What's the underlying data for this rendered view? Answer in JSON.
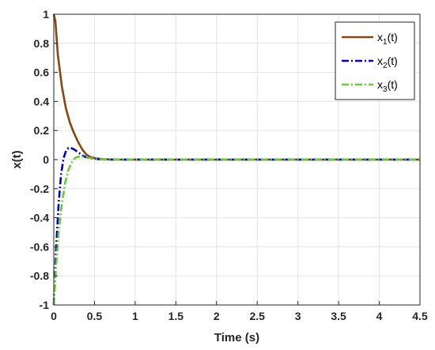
{
  "chart_data": {
    "type": "line",
    "title": "",
    "xlabel": "Time (s)",
    "ylabel": "x(t)",
    "xlim": [
      0,
      4.5
    ],
    "ylim": [
      -1,
      1
    ],
    "xticks": [
      0,
      0.5,
      1,
      1.5,
      2,
      2.5,
      3,
      3.5,
      4,
      4.5
    ],
    "xtick_labels": [
      "0",
      "0.5",
      "1",
      "1.5",
      "2",
      "2.5",
      "3",
      "3.5",
      "4",
      "4.5"
    ],
    "yticks": [
      -1,
      -0.8,
      -0.6,
      -0.4,
      -0.2,
      0,
      0.2,
      0.4,
      0.6,
      0.8,
      1
    ],
    "ytick_labels": [
      "-1",
      "-0.8",
      "-0.6",
      "-0.4",
      "-0.2",
      "0",
      "0.2",
      "0.4",
      "0.6",
      "0.8",
      "1"
    ],
    "grid": true,
    "legend_position": "top-right",
    "series": [
      {
        "name": "x1(t)",
        "legend_main": "x",
        "legend_sub": "1",
        "legend_suffix": "(t)",
        "color": "#8B4513",
        "style": "solid",
        "x": [
          0,
          0.02,
          0.05,
          0.1,
          0.15,
          0.2,
          0.25,
          0.3,
          0.35,
          0.4,
          0.45,
          0.5,
          0.6,
          0.7,
          0.8,
          1.0,
          1.5,
          2.0,
          2.5,
          3.0,
          3.5,
          4.0,
          4.5
        ],
        "y": [
          1.0,
          0.95,
          0.72,
          0.5,
          0.35,
          0.25,
          0.18,
          0.12,
          0.07,
          0.035,
          0.018,
          0.01,
          0.003,
          0.001,
          0.0,
          0.0,
          0.0,
          0.0,
          0.0,
          0.0,
          0.0,
          0.0,
          0.0
        ]
      },
      {
        "name": "x2(t)",
        "legend_main": "x",
        "legend_sub": "2",
        "legend_suffix": "(t)",
        "color": "#0000CD",
        "style": "dashdot",
        "x": [
          0,
          0.03,
          0.06,
          0.09,
          0.12,
          0.15,
          0.18,
          0.21,
          0.25,
          0.3,
          0.35,
          0.4,
          0.5,
          0.6,
          0.7,
          1.0,
          1.5,
          2.0,
          2.5,
          3.0,
          3.5,
          4.0,
          4.5
        ],
        "y": [
          -1.0,
          -0.6,
          -0.3,
          -0.1,
          0.01,
          0.06,
          0.08,
          0.08,
          0.07,
          0.05,
          0.03,
          0.015,
          0.005,
          0.001,
          0.0,
          0.0,
          0.0,
          0.0,
          0.0,
          0.0,
          0.0,
          0.0,
          0.0
        ]
      },
      {
        "name": "x3(t)",
        "legend_main": "x",
        "legend_sub": "3",
        "legend_suffix": "(t)",
        "color": "#66CC33",
        "style": "dashdot",
        "x": [
          0,
          0.03,
          0.06,
          0.1,
          0.14,
          0.18,
          0.22,
          0.26,
          0.3,
          0.35,
          0.4,
          0.5,
          0.6,
          0.7,
          1.0,
          1.5,
          2.0,
          2.5,
          3.0,
          3.5,
          4.0,
          4.5
        ],
        "y": [
          -1.0,
          -0.72,
          -0.5,
          -0.3,
          -0.16,
          -0.07,
          -0.02,
          0.01,
          0.02,
          0.02,
          0.015,
          0.006,
          0.002,
          0.0,
          0.0,
          0.0,
          0.0,
          0.0,
          0.0,
          0.0,
          0.0,
          0.0
        ]
      }
    ]
  }
}
